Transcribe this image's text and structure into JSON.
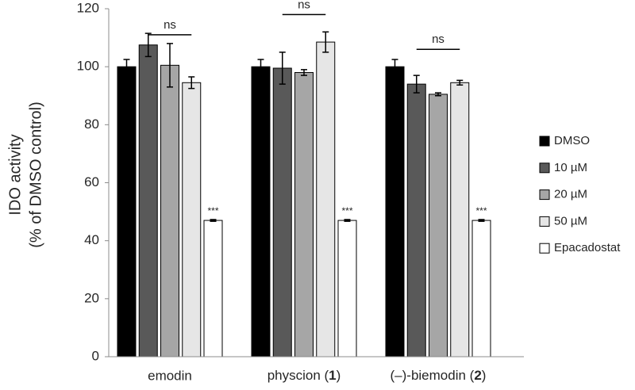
{
  "chart_data": {
    "type": "bar",
    "y_label_lines": [
      "IDO  activity",
      "(% of DMSO control)"
    ],
    "categories": [
      "emodin",
      "physcion (1)",
      "(–)-biemodin (2)"
    ],
    "series": [
      {
        "name": "DMSO",
        "color": "#000000",
        "values": [
          100,
          100,
          100
        ],
        "errors": [
          2.5,
          2.5,
          2.5
        ]
      },
      {
        "name": "10 µM",
        "color": "#595959",
        "values": [
          107.5,
          99.5,
          94
        ],
        "errors": [
          4,
          5.5,
          3
        ]
      },
      {
        "name": "20 µM",
        "color": "#a6a6a6",
        "values": [
          100.5,
          98,
          90.5
        ],
        "errors": [
          7.5,
          1,
          0.5
        ]
      },
      {
        "name": "50 µM",
        "color": "#e6e6e6",
        "values": [
          94.5,
          108.5,
          94.5
        ],
        "errors": [
          2,
          3.5,
          0.8
        ]
      },
      {
        "name": "Epacadostat",
        "color": "#ffffff",
        "values": [
          47,
          47,
          47
        ],
        "errors": [
          0.3,
          0.3,
          0.3
        ],
        "significance": [
          "***",
          "***",
          "***"
        ]
      }
    ],
    "annotations": [
      {
        "text": "ns",
        "y": 111
      },
      {
        "text": "ns",
        "y": 118
      },
      {
        "text": "ns",
        "y": 106
      }
    ],
    "ylim": [
      0,
      120
    ],
    "yticks": [
      0,
      20,
      40,
      60,
      80,
      100,
      120
    ],
    "grid": false,
    "legend": "right"
  }
}
